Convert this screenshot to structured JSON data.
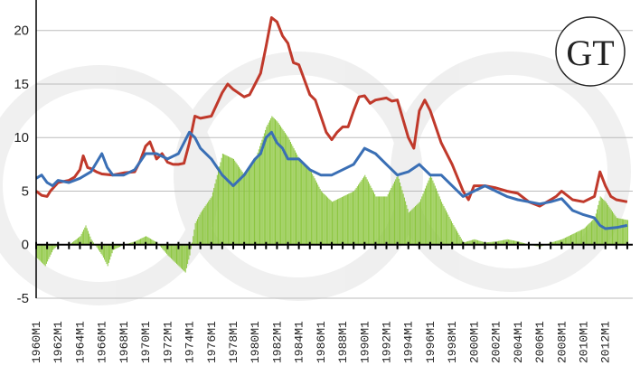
{
  "chart_data": {
    "type": "bar+line",
    "title": "",
    "xlabel": "",
    "ylabel": "",
    "ylim": [
      -5,
      22
    ],
    "yticks": [
      -5,
      0,
      5,
      10,
      15,
      20
    ],
    "xlim": [
      1960.0,
      2014.5
    ],
    "xticks": [
      "1960M1",
      "1962M1",
      "1964M1",
      "1966M1",
      "1968M1",
      "1970M1",
      "1972M1",
      "1974M1",
      "1976M1",
      "1978M1",
      "1980M1",
      "1982M1",
      "1984M1",
      "1986M1",
      "1988M1",
      "1990M1",
      "1992M1",
      "1994M1",
      "1996M1",
      "1998M1",
      "2000M1",
      "2002M1",
      "2004M1",
      "2006M1",
      "2008M1",
      "2010M1",
      "2012M1"
    ],
    "grid": "horizontal",
    "legend": "none",
    "logo_text": "GT",
    "colors": {
      "red": "#c0392b",
      "blue": "#3a6fb5",
      "bars": "#8cc63f",
      "grid": "#bbbbbb",
      "axis": "#000000"
    },
    "series": [
      {
        "kind": "line",
        "color": "#c0392b",
        "points": [
          [
            1960,
            5.0
          ],
          [
            1960.5,
            4.6
          ],
          [
            1961,
            4.5
          ],
          [
            1961.3,
            5.0
          ],
          [
            1962,
            5.8
          ],
          [
            1963,
            6.0
          ],
          [
            1963.5,
            6.3
          ],
          [
            1964,
            7.0
          ],
          [
            1964.3,
            8.3
          ],
          [
            1964.7,
            7.2
          ],
          [
            1965,
            7.1
          ],
          [
            1965.5,
            6.8
          ],
          [
            1966,
            6.6
          ],
          [
            1967,
            6.5
          ],
          [
            1968,
            6.7
          ],
          [
            1969,
            6.8
          ],
          [
            1969.5,
            7.8
          ],
          [
            1970,
            9.2
          ],
          [
            1970.4,
            9.6
          ],
          [
            1971,
            8.0
          ],
          [
            1971.5,
            8.5
          ],
          [
            1972,
            7.7
          ],
          [
            1972.5,
            7.5
          ],
          [
            1973,
            7.5
          ],
          [
            1973.5,
            7.6
          ],
          [
            1974,
            9.5
          ],
          [
            1974.5,
            12.0
          ],
          [
            1975,
            11.8
          ],
          [
            1976,
            12.0
          ],
          [
            1977,
            14.2
          ],
          [
            1977.5,
            15.0
          ],
          [
            1978,
            14.5
          ],
          [
            1979,
            13.8
          ],
          [
            1979.5,
            14.0
          ],
          [
            1980,
            15.0
          ],
          [
            1980.5,
            16.0
          ],
          [
            1981,
            18.5
          ],
          [
            1981.5,
            21.2
          ],
          [
            1982,
            20.8
          ],
          [
            1982.5,
            19.5
          ],
          [
            1983,
            18.8
          ],
          [
            1983.5,
            17.0
          ],
          [
            1984,
            16.8
          ],
          [
            1985,
            14.0
          ],
          [
            1985.5,
            13.5
          ],
          [
            1986,
            12.0
          ],
          [
            1986.5,
            10.5
          ],
          [
            1987,
            9.8
          ],
          [
            1987.5,
            10.5
          ],
          [
            1988,
            11.0
          ],
          [
            1988.5,
            11.0
          ],
          [
            1989,
            12.5
          ],
          [
            1989.5,
            13.8
          ],
          [
            1990,
            13.9
          ],
          [
            1990.5,
            13.2
          ],
          [
            1991,
            13.5
          ],
          [
            1992,
            13.7
          ],
          [
            1992.5,
            13.4
          ],
          [
            1993,
            13.5
          ],
          [
            1994,
            10.0
          ],
          [
            1994.5,
            9.0
          ],
          [
            1995,
            12.5
          ],
          [
            1995.5,
            13.5
          ],
          [
            1996,
            12.5
          ],
          [
            1997,
            9.5
          ],
          [
            1998,
            7.5
          ],
          [
            1999,
            5.0
          ],
          [
            1999.5,
            4.2
          ],
          [
            2000,
            5.5
          ],
          [
            2001,
            5.5
          ],
          [
            2002,
            5.3
          ],
          [
            2003,
            5.0
          ],
          [
            2004,
            4.8
          ],
          [
            2005,
            4.0
          ],
          [
            2006,
            3.6
          ],
          [
            2007,
            4.2
          ],
          [
            2007.5,
            4.5
          ],
          [
            2008,
            5.0
          ],
          [
            2009,
            4.2
          ],
          [
            2010,
            4.0
          ],
          [
            2011,
            4.5
          ],
          [
            2011.5,
            6.8
          ],
          [
            2012,
            5.5
          ],
          [
            2012.5,
            4.5
          ],
          [
            2013,
            4.2
          ],
          [
            2014,
            4.0
          ]
        ]
      },
      {
        "kind": "line",
        "color": "#3a6fb5",
        "points": [
          [
            1960,
            6.2
          ],
          [
            1960.5,
            6.5
          ],
          [
            1961,
            5.8
          ],
          [
            1961.5,
            5.5
          ],
          [
            1962,
            6.0
          ],
          [
            1963,
            5.8
          ],
          [
            1964,
            6.2
          ],
          [
            1965,
            6.8
          ],
          [
            1966,
            8.5
          ],
          [
            1966.5,
            7.2
          ],
          [
            1967,
            6.5
          ],
          [
            1968,
            6.5
          ],
          [
            1969,
            7.0
          ],
          [
            1970,
            8.5
          ],
          [
            1971,
            8.5
          ],
          [
            1972,
            8.0
          ],
          [
            1973,
            8.5
          ],
          [
            1974,
            10.5
          ],
          [
            1974.5,
            10.0
          ],
          [
            1975,
            9.0
          ],
          [
            1976,
            8.0
          ],
          [
            1977,
            6.5
          ],
          [
            1978,
            5.5
          ],
          [
            1979,
            6.5
          ],
          [
            1980,
            8.0
          ],
          [
            1980.5,
            8.5
          ],
          [
            1981,
            10.0
          ],
          [
            1981.5,
            10.5
          ],
          [
            1982,
            9.5
          ],
          [
            1982.5,
            9.0
          ],
          [
            1983,
            8.0
          ],
          [
            1984,
            8.0
          ],
          [
            1985,
            7.0
          ],
          [
            1986,
            6.5
          ],
          [
            1987,
            6.5
          ],
          [
            1988,
            7.0
          ],
          [
            1989,
            7.5
          ],
          [
            1990,
            9.0
          ],
          [
            1991,
            8.5
          ],
          [
            1992,
            7.5
          ],
          [
            1993,
            6.5
          ],
          [
            1994,
            6.8
          ],
          [
            1995,
            7.5
          ],
          [
            1996,
            6.5
          ],
          [
            1997,
            6.5
          ],
          [
            1998,
            5.5
          ],
          [
            1999,
            4.5
          ],
          [
            2000,
            5.0
          ],
          [
            2001,
            5.5
          ],
          [
            2002,
            5.0
          ],
          [
            2003,
            4.5
          ],
          [
            2004,
            4.2
          ],
          [
            2005,
            4.0
          ],
          [
            2006,
            3.8
          ],
          [
            2007,
            4.0
          ],
          [
            2008,
            4.3
          ],
          [
            2009,
            3.2
          ],
          [
            2010,
            2.8
          ],
          [
            2011,
            2.5
          ],
          [
            2011.5,
            1.8
          ],
          [
            2012,
            1.5
          ],
          [
            2013,
            1.6
          ],
          [
            2014,
            1.8
          ]
        ]
      },
      {
        "kind": "bar",
        "color": "#8cc63f",
        "points": [
          [
            1960,
            -1.2
          ],
          [
            1960.8,
            -2.0
          ],
          [
            1961.5,
            -0.5
          ],
          [
            1962,
            0
          ],
          [
            1963,
            0
          ],
          [
            1964,
            0.8
          ],
          [
            1964.5,
            1.8
          ],
          [
            1965,
            0.5
          ],
          [
            1966,
            -1.0
          ],
          [
            1966.5,
            -2.0
          ],
          [
            1967,
            -0.5
          ],
          [
            1968,
            0
          ],
          [
            1969,
            0.3
          ],
          [
            1970,
            0.8
          ],
          [
            1971,
            0.2
          ],
          [
            1972,
            -1.0
          ],
          [
            1973,
            -2.0
          ],
          [
            1973.6,
            -2.6
          ],
          [
            1974,
            -1.0
          ],
          [
            1974.5,
            2.0
          ],
          [
            1975,
            3.0
          ],
          [
            1976,
            4.5
          ],
          [
            1977,
            8.5
          ],
          [
            1978,
            8.0
          ],
          [
            1979,
            6.5
          ],
          [
            1980,
            8.0
          ],
          [
            1981,
            11.0
          ],
          [
            1981.5,
            12.0
          ],
          [
            1982,
            11.5
          ],
          [
            1983,
            10.0
          ],
          [
            1984,
            8.0
          ],
          [
            1985,
            7.0
          ],
          [
            1986,
            5.0
          ],
          [
            1987,
            4.0
          ],
          [
            1988,
            4.5
          ],
          [
            1989,
            5.0
          ],
          [
            1990,
            6.5
          ],
          [
            1991,
            4.5
          ],
          [
            1992,
            4.5
          ],
          [
            1993,
            6.5
          ],
          [
            1994,
            3.0
          ],
          [
            1995,
            4.0
          ],
          [
            1996,
            6.5
          ],
          [
            1997,
            4.0
          ],
          [
            1998,
            2.0
          ],
          [
            1999,
            0.2
          ],
          [
            2000,
            0.5
          ],
          [
            2001,
            0.2
          ],
          [
            2002,
            0.3
          ],
          [
            2003,
            0.5
          ],
          [
            2004,
            0.3
          ],
          [
            2005,
            0
          ],
          [
            2006,
            -0.2
          ],
          [
            2007,
            0.2
          ],
          [
            2008,
            0.5
          ],
          [
            2009,
            1.0
          ],
          [
            2010,
            1.5
          ],
          [
            2011,
            2.5
          ],
          [
            2011.5,
            4.5
          ],
          [
            2012,
            4.0
          ],
          [
            2013,
            2.5
          ],
          [
            2014,
            2.3
          ]
        ]
      }
    ]
  }
}
